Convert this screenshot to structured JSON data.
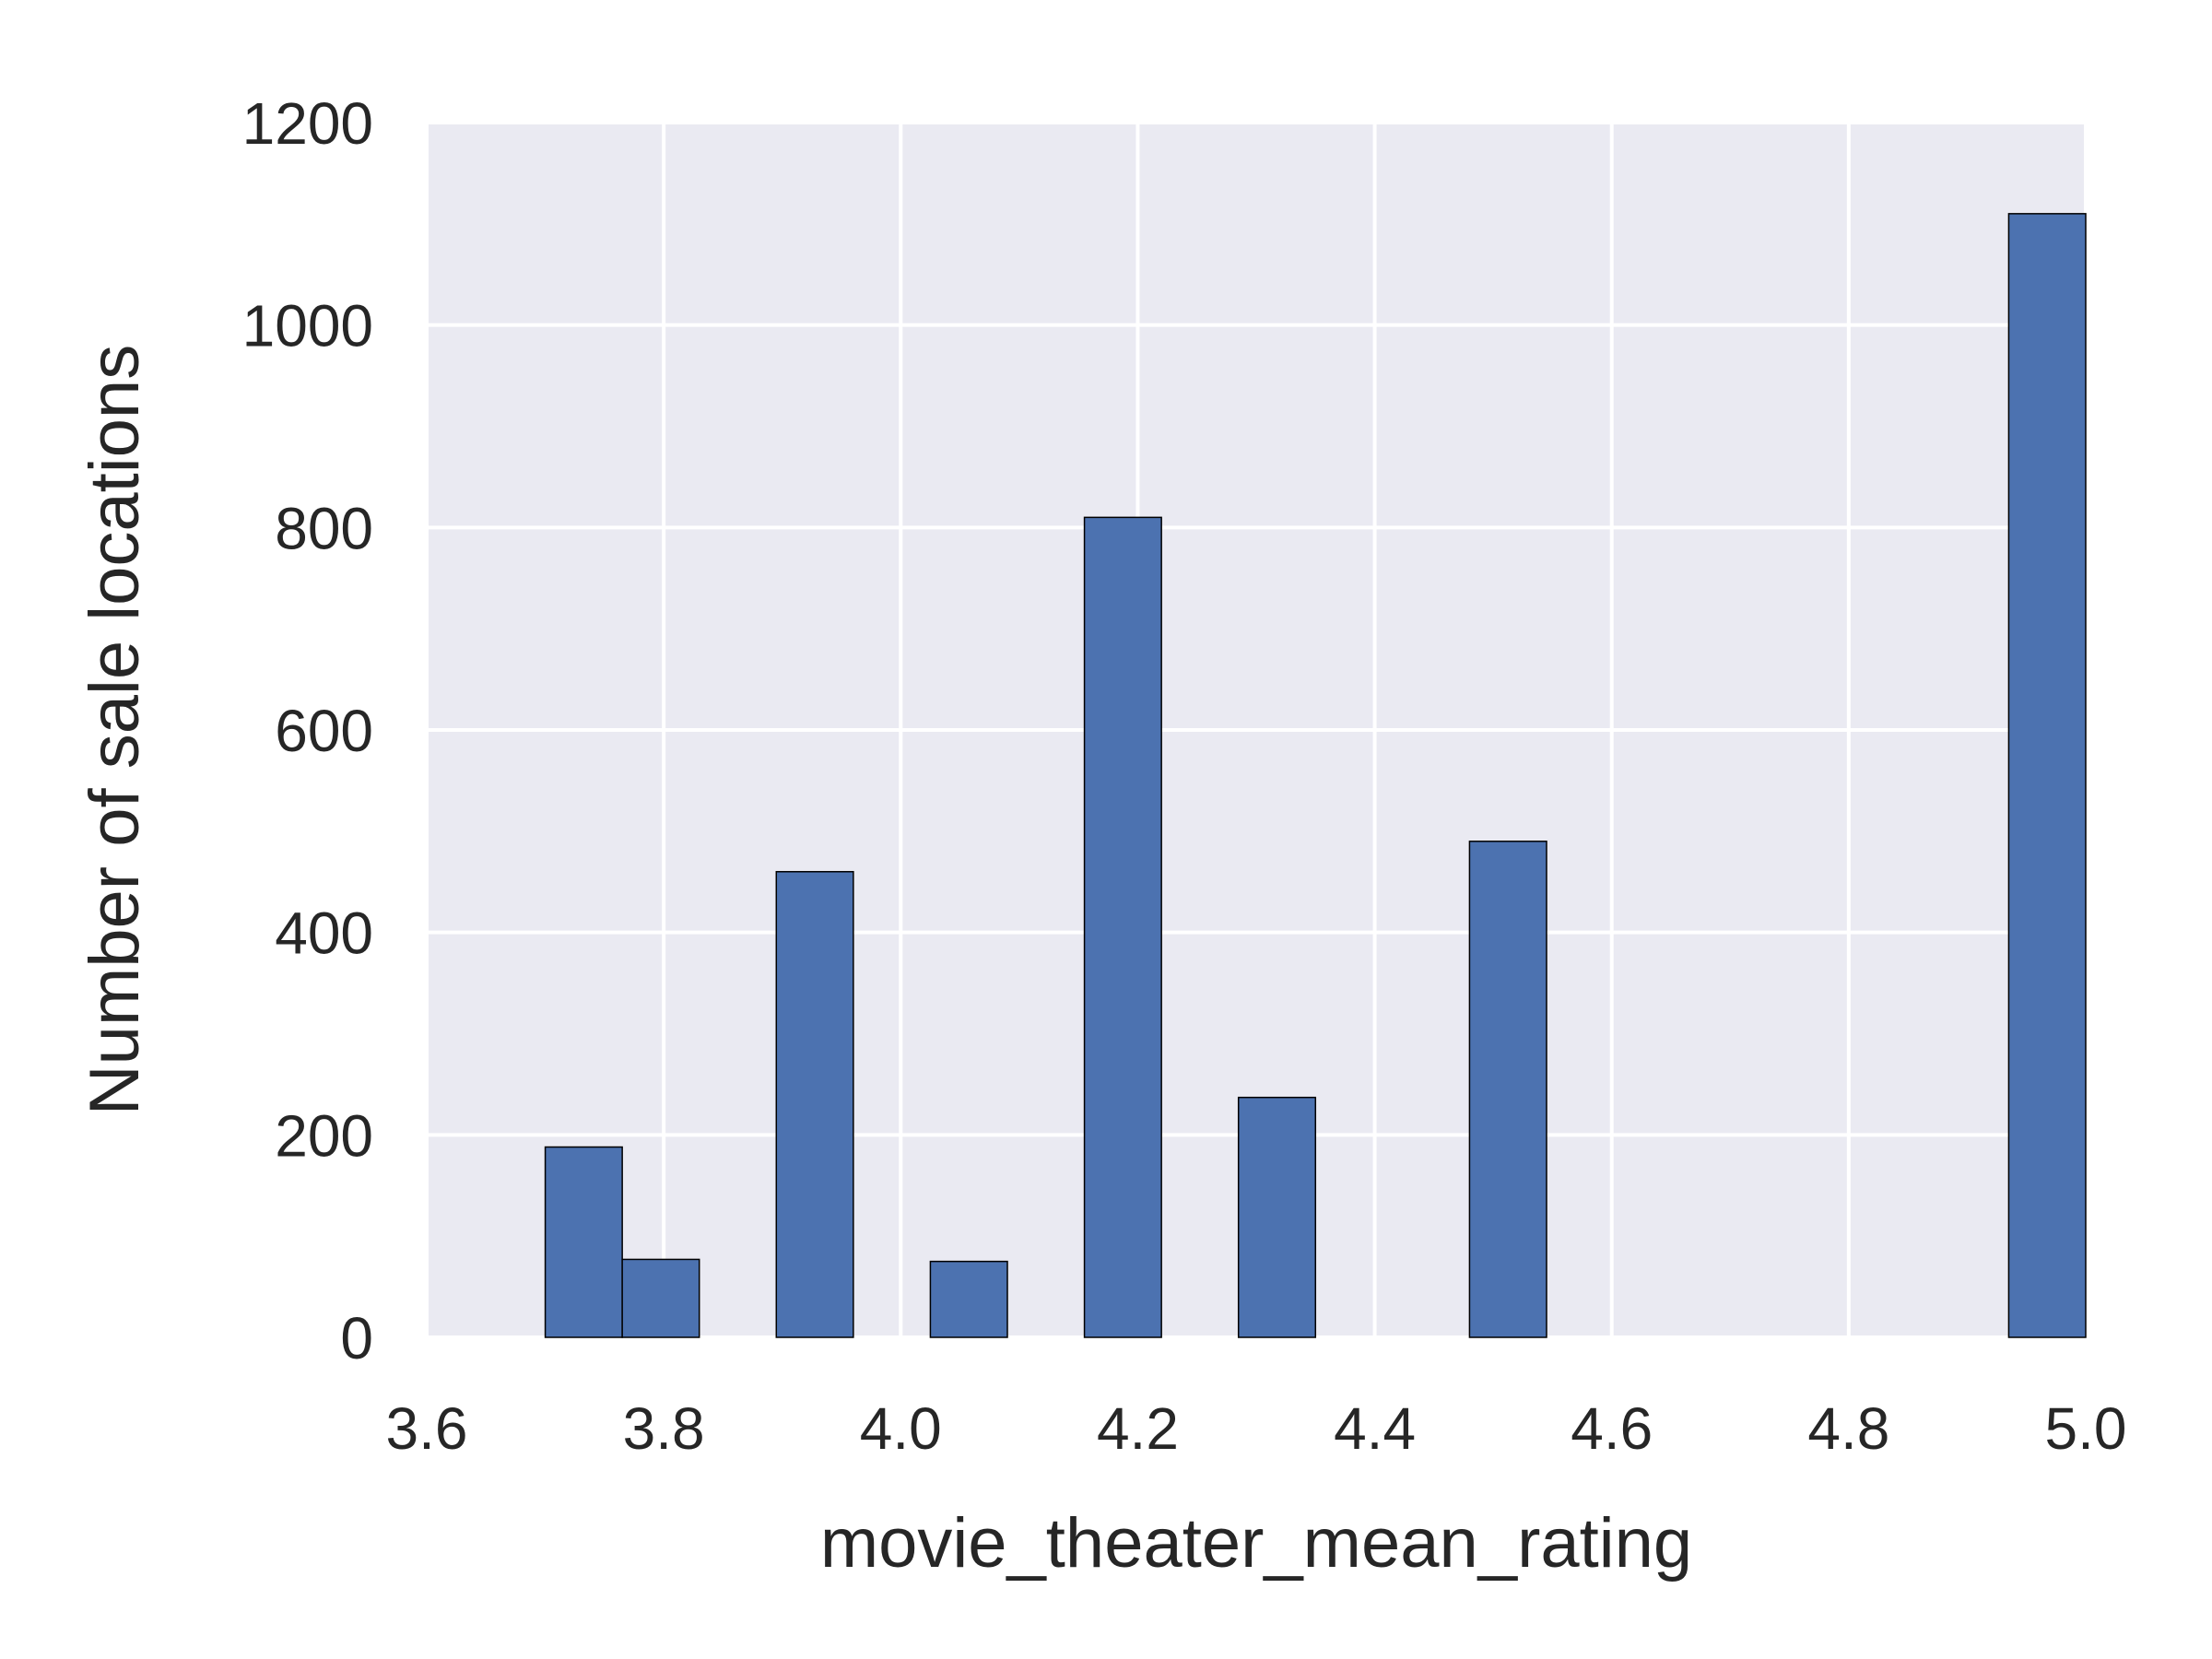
{
  "chart_data": {
    "type": "bar",
    "subtype": "histogram",
    "title": "",
    "xlabel": "movie_theater_mean_rating",
    "ylabel": "Number of sale locations",
    "xlim": [
      3.6,
      5.0
    ],
    "ylim": [
      0,
      1200
    ],
    "xticks": [
      3.6,
      3.8,
      4.0,
      4.2,
      4.4,
      4.6,
      4.8,
      5.0
    ],
    "xtick_labels": [
      "3.6",
      "3.8",
      "4.0",
      "4.2",
      "4.4",
      "4.6",
      "4.8",
      "5.0"
    ],
    "yticks": [
      0,
      200,
      400,
      600,
      800,
      1000,
      1200
    ],
    "ytick_labels": [
      "0",
      "200",
      "400",
      "600",
      "800",
      "1000",
      "1200"
    ],
    "grid": true,
    "bar_color": "#4c72b0",
    "plot_background": "#eaeaf2",
    "bins": [
      {
        "x0": 3.7,
        "x1": 3.765,
        "value": 188
      },
      {
        "x0": 3.765,
        "x1": 3.83,
        "value": 77
      },
      {
        "x0": 3.83,
        "x1": 3.895,
        "value": 0
      },
      {
        "x0": 3.895,
        "x1": 3.96,
        "value": 460
      },
      {
        "x0": 3.96,
        "x1": 4.025,
        "value": 0
      },
      {
        "x0": 4.025,
        "x1": 4.09,
        "value": 75
      },
      {
        "x0": 4.09,
        "x1": 4.155,
        "value": 0
      },
      {
        "x0": 4.155,
        "x1": 4.22,
        "value": 810
      },
      {
        "x0": 4.22,
        "x1": 4.285,
        "value": 0
      },
      {
        "x0": 4.285,
        "x1": 4.35,
        "value": 237
      },
      {
        "x0": 4.35,
        "x1": 4.415,
        "value": 0
      },
      {
        "x0": 4.415,
        "x1": 4.48,
        "value": 0
      },
      {
        "x0": 4.48,
        "x1": 4.545,
        "value": 490
      },
      {
        "x0": 4.545,
        "x1": 4.61,
        "value": 0
      },
      {
        "x0": 4.61,
        "x1": 4.675,
        "value": 0
      },
      {
        "x0": 4.675,
        "x1": 4.74,
        "value": 0
      },
      {
        "x0": 4.74,
        "x1": 4.805,
        "value": 0
      },
      {
        "x0": 4.805,
        "x1": 4.87,
        "value": 0
      },
      {
        "x0": 4.87,
        "x1": 4.935,
        "value": 0
      },
      {
        "x0": 4.935,
        "x1": 5.0,
        "value": 1110
      }
    ]
  }
}
